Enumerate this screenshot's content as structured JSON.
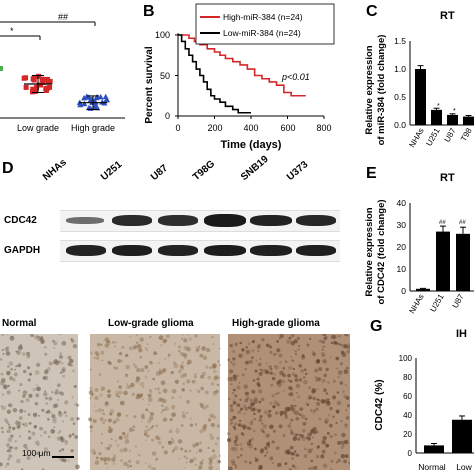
{
  "panels": {
    "A": {
      "letter": "",
      "categories": [
        "Low grade",
        "High grade"
      ],
      "significance": [
        "*",
        "##"
      ]
    },
    "B": {
      "letter": "B",
      "ylabel": "Percent survival",
      "xlabel": "Time (days)",
      "legend": [
        "High-miR-384 (n=24)",
        "Low-miR-384 (n=24)"
      ],
      "pvalue": "p<0.01",
      "xticks": [
        "0",
        "200",
        "400",
        "600",
        "800"
      ],
      "yticks": [
        "0",
        "50",
        "100"
      ]
    },
    "C": {
      "letter": "C",
      "title_fragment": "RT",
      "ylabel_line1": "Relative expression",
      "ylabel_line2": "of miR-384 (fold change)",
      "yticks": [
        "0.0",
        "0.5",
        "1.0",
        "1.5"
      ],
      "categories": [
        "NHAs",
        "U251",
        "U87",
        "T98"
      ],
      "marks": [
        "",
        "*",
        "*",
        ""
      ]
    },
    "D": {
      "letter": "D",
      "lanes": [
        "NHAs",
        "U251",
        "U87",
        "T98G",
        "SNB19",
        "U373"
      ],
      "rows": [
        "CDC42",
        "GAPDH"
      ]
    },
    "E": {
      "letter": "E",
      "title_fragment": "RT",
      "ylabel_line1": "Relative expression",
      "ylabel_line2": "of CDC42 (fold change)",
      "yticks": [
        "0",
        "10",
        "20",
        "30",
        "40"
      ],
      "categories": [
        "NHAs",
        "U251",
        "U87"
      ],
      "marks": [
        "",
        "##",
        "##"
      ]
    },
    "F": {
      "titles": [
        "Normal",
        "Low-grade glioma",
        "High-grade glioma"
      ],
      "scalebar": "100 μm"
    },
    "G": {
      "letter": "G",
      "title_fragment": "IH",
      "ylabel": "CDC42 (%)",
      "yticks": [
        "0",
        "20",
        "40",
        "60",
        "80",
        "100"
      ],
      "categories": [
        "Normal",
        "Low"
      ]
    }
  },
  "chart_data": [
    {
      "type": "scatter",
      "panel": "A",
      "categories": [
        "Low grade",
        "High grade"
      ],
      "series": [
        {
          "name": "Low grade",
          "color": "#d62728",
          "mean": 1.0,
          "sd": 0.25
        },
        {
          "name": "High grade",
          "color": "#2f4fbf",
          "mean": 0.45,
          "sd": 0.2
        }
      ]
    },
    {
      "type": "line",
      "panel": "B",
      "title": "",
      "xlabel": "Time (days)",
      "ylabel": "Percent survival",
      "xlim": [
        0,
        800
      ],
      "ylim": [
        0,
        100
      ],
      "series": [
        {
          "name": "High-miR-384 (n=24)",
          "color": "#d62728",
          "x": [
            0,
            60,
            90,
            120,
            160,
            200,
            230,
            260,
            300,
            340,
            380,
            420,
            460,
            500,
            540,
            580,
            620,
            700
          ],
          "y": [
            100,
            96,
            92,
            88,
            83,
            79,
            75,
            71,
            67,
            63,
            58,
            50,
            46,
            42,
            38,
            29,
            25,
            25
          ]
        },
        {
          "name": "Low-miR-384 (n=24)",
          "color": "#000000",
          "x": [
            0,
            20,
            40,
            60,
            80,
            100,
            120,
            140,
            160,
            180,
            200,
            230,
            260,
            300,
            330,
            360,
            400
          ],
          "y": [
            100,
            92,
            83,
            75,
            67,
            58,
            50,
            42,
            33,
            25,
            21,
            17,
            12,
            8,
            4,
            4,
            4
          ]
        }
      ]
    },
    {
      "type": "bar",
      "panel": "C",
      "categories": [
        "NHAs",
        "U251",
        "U87",
        "T98"
      ],
      "values": [
        1.0,
        0.27,
        0.18,
        0.15
      ],
      "errors": [
        0.06,
        0.03,
        0.02,
        0.02
      ],
      "ylim": [
        0,
        1.5
      ]
    },
    {
      "type": "bar",
      "panel": "E",
      "categories": [
        "NHAs",
        "U251",
        "U87"
      ],
      "values": [
        1.0,
        27,
        26
      ],
      "errors": [
        0.2,
        2.5,
        3
      ],
      "ylim": [
        0,
        40
      ]
    },
    {
      "type": "bar",
      "panel": "G",
      "categories": [
        "Normal",
        "Low"
      ],
      "values": [
        8,
        35
      ],
      "errors": [
        2,
        4
      ],
      "ylim": [
        0,
        100
      ]
    }
  ],
  "colors": {
    "red": "#d62728",
    "blue": "#2f4fbf",
    "green": "#4caf50",
    "ihc_light": "#d9cfc4",
    "ihc_dark": "#8c6e57"
  }
}
